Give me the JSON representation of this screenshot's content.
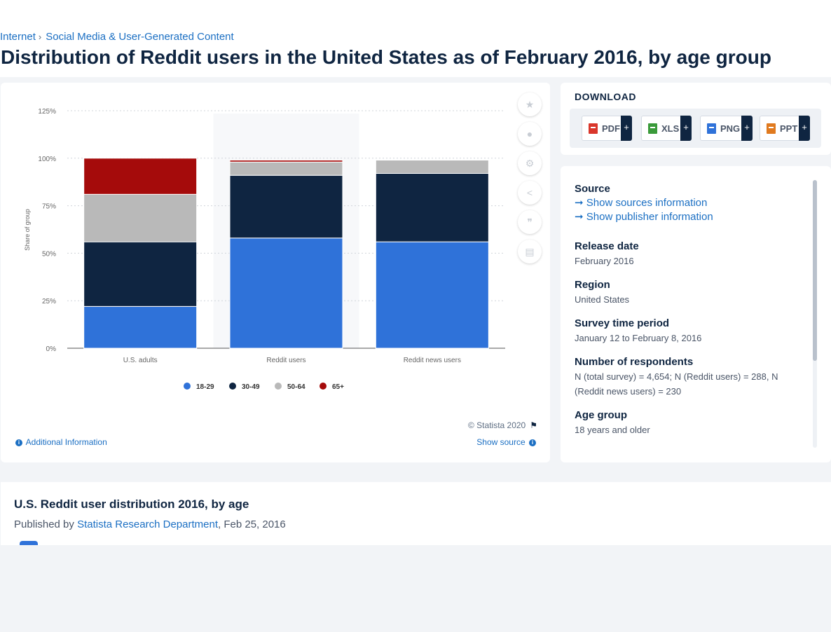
{
  "breadcrumb": [
    "Internet",
    "Social Media & User-Generated Content"
  ],
  "page_title": "Distribution of Reddit users in the United States as of February 2016, by age group",
  "chart_data": {
    "type": "bar",
    "stacked": true,
    "categories": [
      "U.S. adults",
      "Reddit users",
      "Reddit news users"
    ],
    "series": [
      {
        "name": "18-29",
        "color": "#2f72d9",
        "values": [
          22,
          58,
          56
        ]
      },
      {
        "name": "30-49",
        "color": "#0f2541",
        "values": [
          34,
          33,
          36
        ]
      },
      {
        "name": "50-64",
        "color": "#b9b9b9",
        "values": [
          25,
          7,
          7
        ]
      },
      {
        "name": "65+",
        "color": "#a50b0b",
        "values": [
          19,
          1,
          0
        ]
      }
    ],
    "ylabel": "Share of group",
    "ylim": [
      0,
      125
    ],
    "yticks": [
      "0%",
      "25%",
      "50%",
      "75%",
      "100%",
      "125%"
    ],
    "grid": true,
    "legend": "bottom",
    "highlighted_category": "Reddit users"
  },
  "chart_footer": {
    "copyright": "© Statista 2020",
    "additional_info": "Additional Information",
    "show_source": "Show source"
  },
  "tools": [
    "star-icon",
    "bell-icon",
    "gear-icon",
    "share-icon",
    "quote-icon",
    "print-icon"
  ],
  "download": {
    "title": "DOWNLOAD",
    "buttons": [
      {
        "label": "PDF",
        "color": "#d9362b"
      },
      {
        "label": "XLS",
        "color": "#3a9a3a"
      },
      {
        "label": "PNG",
        "color": "#2f72d9"
      },
      {
        "label": "PPT",
        "color": "#e07a1f"
      }
    ]
  },
  "info": {
    "source_label": "Source",
    "show_sources": "Show sources information",
    "show_publisher": "Show publisher information",
    "release_date_label": "Release date",
    "release_date": "February 2016",
    "region_label": "Region",
    "region": "United States",
    "survey_period_label": "Survey time period",
    "survey_period": "January 12 to February 8, 2016",
    "respondents_label": "Number of respondents",
    "respondents": "N (total survey) = 4,654; N (Reddit users) = 288, N (Reddit news users) = 230",
    "age_group_label": "Age group",
    "age_group": "18 years and older"
  },
  "bottom": {
    "title": "U.S. Reddit user distribution 2016, by age",
    "published_prefix": "Published by ",
    "publisher": "Statista Research Department",
    "date": ", Feb 25, 2016"
  }
}
